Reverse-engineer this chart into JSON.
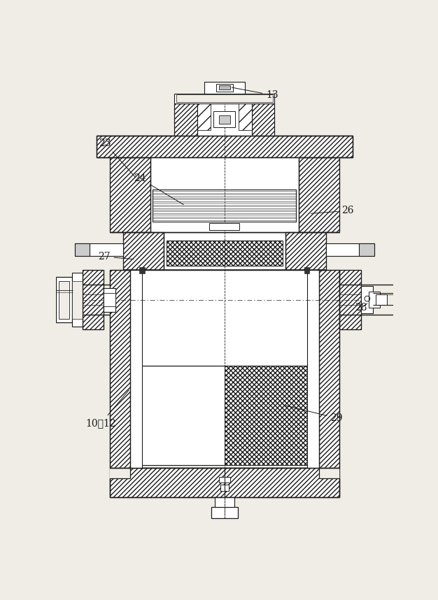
{
  "bg_color": "#f0ede6",
  "line_color": "#1a1a1a",
  "figsize": [
    6.26,
    8.58
  ],
  "dpi": 100,
  "label_texts": {
    "13": "13",
    "23": "23",
    "24": "24",
    "26": "26",
    "27": "27",
    "28": "28",
    "10_12": "10、12",
    "29": "29"
  }
}
